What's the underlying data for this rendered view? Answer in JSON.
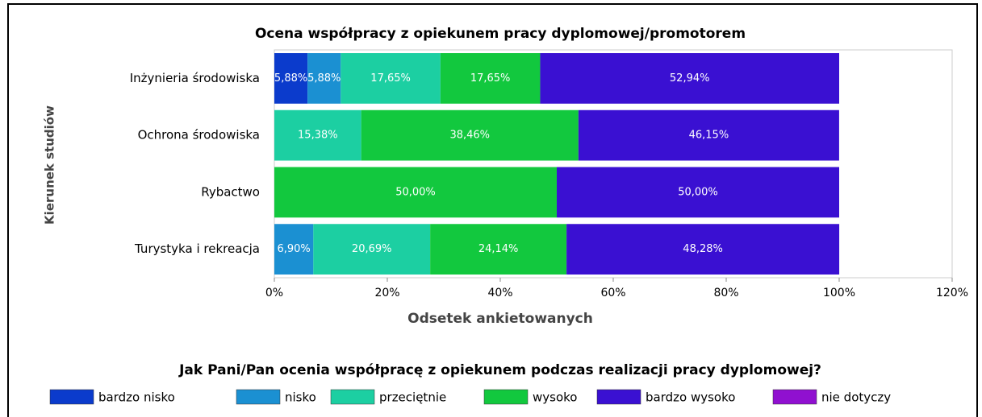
{
  "chart_data": {
    "type": "stacked-bar-horizontal",
    "title": "Ocena współpracy z opiekunem pracy dyplomowej/promotorem",
    "x_label": "Odsetek ankietowanych",
    "y_label": "Kierunek studiów",
    "legend_title": "Jak Pani/Pan ocenia współpracę z opiekunem podczas realizacji pracy dyplomowej?",
    "categories": [
      "Inżynieria środowiska",
      "Ochrona środowiska",
      "Rybactwo",
      "Turystyka i rekreacja"
    ],
    "series": [
      {
        "name": "bardzo nisko",
        "color": "#0b3bcc",
        "values": [
          5.88,
          null,
          null,
          null
        ],
        "value_labels": [
          "5,88%",
          null,
          null,
          null
        ]
      },
      {
        "name": "nisko",
        "color": "#1b90d2",
        "values": [
          5.88,
          null,
          null,
          6.9
        ],
        "value_labels": [
          "5,88%",
          null,
          null,
          "6,90%"
        ]
      },
      {
        "name": "przeciętnie",
        "color": "#1ccfa2",
        "values": [
          17.65,
          15.38,
          null,
          20.69
        ],
        "value_labels": [
          "17,65%",
          "15,38%",
          null,
          "20,69%"
        ]
      },
      {
        "name": "wysoko",
        "color": "#12c83e",
        "values": [
          17.65,
          38.46,
          50.0,
          24.14
        ],
        "value_labels": [
          "17,65%",
          "38,46%",
          "50,00%",
          "24,14%"
        ]
      },
      {
        "name": "bardzo wysoko",
        "color": "#3a10d2",
        "values": [
          52.94,
          46.15,
          50.0,
          48.28
        ],
        "value_labels": [
          "52,94%",
          "46,15%",
          "50,00%",
          "48,28%"
        ]
      },
      {
        "name": "nie dotyczy",
        "color": "#9010d0",
        "values": [
          null,
          null,
          null,
          null
        ]
      }
    ],
    "xlim": [
      0,
      120
    ],
    "xticks": [
      {
        "value": 0,
        "label": "0%"
      },
      {
        "value": 20,
        "label": "20%"
      },
      {
        "value": 40,
        "label": "40%"
      },
      {
        "value": 60,
        "label": "60%"
      },
      {
        "value": 80,
        "label": "80%"
      },
      {
        "value": 100,
        "label": "100%"
      },
      {
        "value": 120,
        "label": "120%"
      }
    ]
  }
}
